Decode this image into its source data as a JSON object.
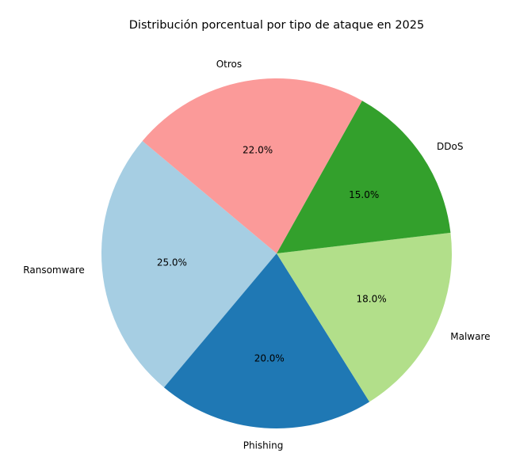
{
  "chart_data": {
    "type": "pie",
    "title": "Distribución porcentual por tipo de ataque en 2025",
    "categories": [
      "Ransomware",
      "Phishing",
      "Malware",
      "DDoS",
      "Otros"
    ],
    "values": [
      25.0,
      20.0,
      18.0,
      15.0,
      22.0
    ],
    "percent_labels": [
      "25.0%",
      "20.0%",
      "18.0%",
      "15.0%",
      "22.0%"
    ],
    "colors": [
      "#a6cee3",
      "#1f78b4",
      "#b2df8a",
      "#33a02c",
      "#fb9a99"
    ],
    "start_angle_deg": 140,
    "direction": "counterclockwise",
    "legend": "none"
  }
}
